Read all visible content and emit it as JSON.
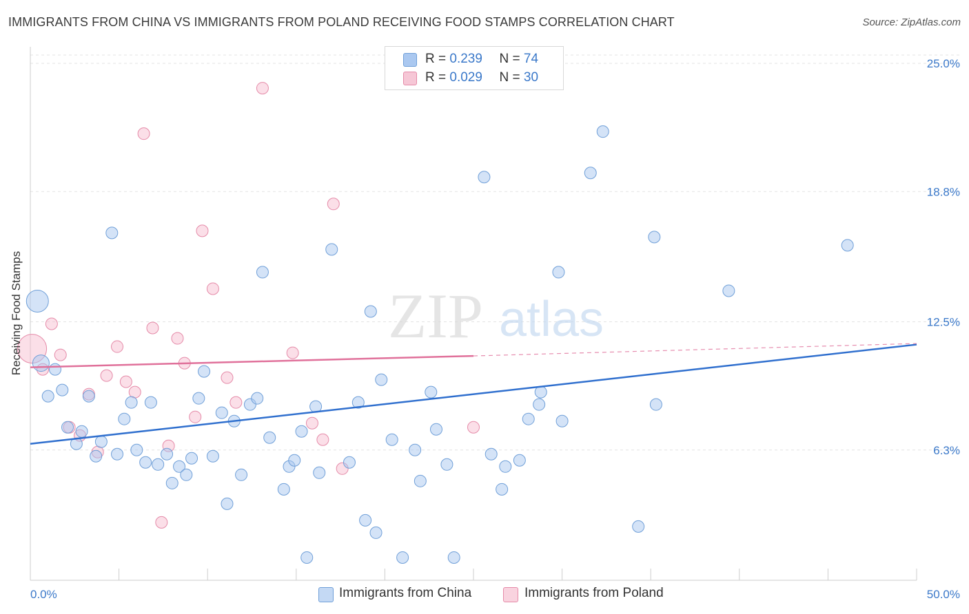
{
  "title": "IMMIGRANTS FROM CHINA VS IMMIGRANTS FROM POLAND RECEIVING FOOD STAMPS CORRELATION CHART",
  "source": "Source: ZipAtlas.com",
  "watermark": {
    "zip": "ZIP",
    "atlas": "atlas"
  },
  "legend": {
    "r_label": "R =",
    "n_label": "N =",
    "entries": [
      {
        "r": "0.239",
        "n": "74"
      },
      {
        "r": "0.029",
        "n": "30"
      }
    ]
  },
  "colors": {
    "china_fill": "#aac8f0",
    "china_stroke": "#6f9fd8",
    "china_line": "#2f6fce",
    "poland_fill": "#f6b9cc",
    "poland_stroke": "#e58aa8",
    "poland_line": "#e0709a",
    "tick_label": "#3a78c9"
  },
  "chart_data": {
    "type": "scatter",
    "title": "IMMIGRANTS FROM CHINA VS IMMIGRANTS FROM POLAND RECEIVING FOOD STAMPS CORRELATION CHART",
    "xlabel": "",
    "ylabel": "Receiving Food Stamps",
    "xlim": [
      0,
      50
    ],
    "ylim": [
      0,
      25.8
    ],
    "x_tick_labels": [
      "0.0%",
      "50.0%"
    ],
    "y_ticks": [
      6.3,
      12.5,
      18.8,
      25.0
    ],
    "y_tick_labels": [
      "6.3%",
      "12.5%",
      "18.8%",
      "25.0%"
    ],
    "grid": true,
    "legend_position": "top-center",
    "series": [
      {
        "name": "Immigrants from China",
        "points": [
          [
            0.4,
            13.5
          ],
          [
            0.6,
            10.5
          ],
          [
            1.0,
            8.9
          ],
          [
            1.4,
            10.2
          ],
          [
            1.8,
            9.2
          ],
          [
            2.1,
            7.4
          ],
          [
            2.6,
            6.6
          ],
          [
            2.9,
            7.2
          ],
          [
            3.3,
            8.9
          ],
          [
            3.7,
            6.0
          ],
          [
            4.0,
            6.7
          ],
          [
            4.6,
            16.8
          ],
          [
            4.9,
            6.1
          ],
          [
            5.3,
            7.8
          ],
          [
            5.7,
            8.6
          ],
          [
            6.0,
            6.3
          ],
          [
            6.5,
            5.7
          ],
          [
            6.8,
            8.6
          ],
          [
            7.2,
            5.6
          ],
          [
            7.7,
            6.1
          ],
          [
            8.0,
            4.7
          ],
          [
            8.4,
            5.5
          ],
          [
            8.8,
            5.1
          ],
          [
            9.1,
            5.9
          ],
          [
            9.5,
            8.8
          ],
          [
            9.8,
            10.1
          ],
          [
            10.3,
            6.0
          ],
          [
            10.8,
            8.1
          ],
          [
            11.1,
            3.7
          ],
          [
            11.5,
            7.7
          ],
          [
            11.9,
            5.1
          ],
          [
            12.4,
            8.5
          ],
          [
            12.8,
            8.8
          ],
          [
            13.1,
            14.9
          ],
          [
            13.5,
            6.9
          ],
          [
            14.3,
            4.4
          ],
          [
            14.6,
            5.5
          ],
          [
            14.9,
            5.8
          ],
          [
            15.3,
            7.2
          ],
          [
            15.6,
            1.1
          ],
          [
            16.1,
            8.4
          ],
          [
            16.3,
            5.2
          ],
          [
            17.0,
            16.0
          ],
          [
            18.0,
            5.7
          ],
          [
            18.5,
            8.6
          ],
          [
            18.9,
            2.9
          ],
          [
            19.2,
            13.0
          ],
          [
            19.5,
            2.3
          ],
          [
            19.8,
            9.7
          ],
          [
            20.4,
            6.8
          ],
          [
            21.0,
            1.1
          ],
          [
            21.7,
            6.3
          ],
          [
            22.0,
            4.8
          ],
          [
            22.6,
            9.1
          ],
          [
            22.9,
            7.3
          ],
          [
            23.5,
            5.6
          ],
          [
            23.9,
            1.1
          ],
          [
            25.6,
            19.5
          ],
          [
            26.0,
            6.1
          ],
          [
            26.6,
            4.4
          ],
          [
            26.8,
            5.5
          ],
          [
            27.6,
            5.8
          ],
          [
            28.1,
            7.8
          ],
          [
            28.7,
            8.5
          ],
          [
            28.8,
            9.1
          ],
          [
            29.8,
            14.9
          ],
          [
            30.0,
            7.7
          ],
          [
            31.6,
            19.7
          ],
          [
            32.3,
            21.7
          ],
          [
            34.3,
            2.6
          ],
          [
            35.2,
            16.6
          ],
          [
            35.3,
            8.5
          ],
          [
            39.4,
            14.0
          ],
          [
            46.1,
            16.2
          ]
        ]
      },
      {
        "name": "Immigrants from Poland",
        "points": [
          [
            0.1,
            11.2
          ],
          [
            0.7,
            10.2
          ],
          [
            1.2,
            12.4
          ],
          [
            1.7,
            10.9
          ],
          [
            2.2,
            7.4
          ],
          [
            2.8,
            7.0
          ],
          [
            3.3,
            9.0
          ],
          [
            3.8,
            6.2
          ],
          [
            4.3,
            9.9
          ],
          [
            4.9,
            11.3
          ],
          [
            5.4,
            9.6
          ],
          [
            5.9,
            9.1
          ],
          [
            6.4,
            21.6
          ],
          [
            6.9,
            12.2
          ],
          [
            7.4,
            2.8
          ],
          [
            7.8,
            6.5
          ],
          [
            8.3,
            11.7
          ],
          [
            8.7,
            10.5
          ],
          [
            9.3,
            7.9
          ],
          [
            9.7,
            16.9
          ],
          [
            10.3,
            14.1
          ],
          [
            11.1,
            9.8
          ],
          [
            11.6,
            8.6
          ],
          [
            13.1,
            23.8
          ],
          [
            14.8,
            11.0
          ],
          [
            15.9,
            7.6
          ],
          [
            16.5,
            6.8
          ],
          [
            17.1,
            18.2
          ],
          [
            17.6,
            5.4
          ],
          [
            25.0,
            7.4
          ]
        ]
      }
    ],
    "trend_lines": [
      {
        "name": "Immigrants from China",
        "x": [
          0,
          50
        ],
        "y": [
          6.6,
          11.4
        ]
      },
      {
        "name": "Immigrants from Poland",
        "x": [
          0,
          25,
          50
        ],
        "y": [
          10.3,
          10.85,
          11.45
        ]
      }
    ]
  }
}
